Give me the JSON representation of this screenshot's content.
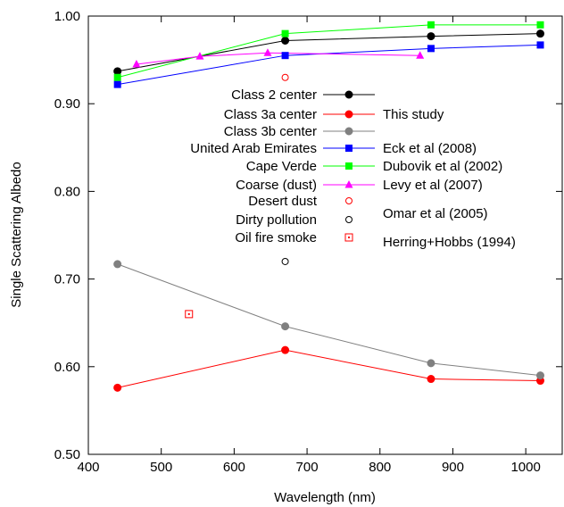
{
  "chart_data": {
    "type": "line",
    "title": "",
    "xlabel": "Wavelength (nm)",
    "ylabel": "Single Scattering Albedo",
    "xlim": [
      400,
      1050
    ],
    "ylim": [
      0.5,
      1.0
    ],
    "xticks": [
      400,
      500,
      600,
      700,
      800,
      900,
      1000
    ],
    "xtick_labels": [
      "400",
      "500",
      "600",
      "700",
      "800",
      "900",
      "1000"
    ],
    "yticks": [
      0.5,
      0.6,
      0.7,
      0.8,
      0.9,
      1.0
    ],
    "ytick_labels": [
      "0.50",
      "0.60",
      "0.70",
      "0.80",
      "0.90",
      "1.00"
    ],
    "grid": false,
    "legend_position": "inside-upper-center",
    "series": [
      {
        "name": "Class 2 center",
        "source": "",
        "color": "#000000",
        "marker": "filled-circle",
        "line": true,
        "x": [
          440,
          670,
          870,
          1020
        ],
        "y": [
          0.937,
          0.972,
          0.977,
          0.98
        ]
      },
      {
        "name": "Class 3a center",
        "source": "This study",
        "color": "#ff0000",
        "marker": "filled-circle",
        "line": true,
        "x": [
          440,
          670,
          870,
          1020
        ],
        "y": [
          0.576,
          0.619,
          0.586,
          0.584
        ]
      },
      {
        "name": "Class 3b center",
        "source": "",
        "color": "#808080",
        "marker": "filled-circle",
        "line": true,
        "x": [
          440,
          670,
          870,
          1020
        ],
        "y": [
          0.717,
          0.646,
          0.604,
          0.59
        ]
      },
      {
        "name": "United Arab Emirates",
        "source": "Eck et al (2008)",
        "color": "#0000ff",
        "marker": "filled-square",
        "line": true,
        "x": [
          440,
          670,
          870,
          1020
        ],
        "y": [
          0.922,
          0.955,
          0.963,
          0.967
        ]
      },
      {
        "name": "Cape Verde",
        "source": "Dubovik et al (2002)",
        "color": "#00ff00",
        "marker": "filled-square",
        "line": true,
        "x": [
          440,
          670,
          870,
          1020
        ],
        "y": [
          0.93,
          0.98,
          0.99,
          0.99
        ]
      },
      {
        "name": "Coarse (dust)",
        "source": "Levy et al (2007)",
        "color": "#ff00ff",
        "marker": "filled-triangle",
        "line": true,
        "x": [
          466,
          553,
          646,
          855
        ],
        "y": [
          0.945,
          0.954,
          0.958,
          0.955
        ]
      },
      {
        "name": "Desert dust",
        "source": "",
        "color": "#ff0000",
        "marker": "open-circle",
        "line": false,
        "x": [
          670
        ],
        "y": [
          0.93
        ]
      },
      {
        "name": "Dirty pollution",
        "source": "Omar et al (2005)",
        "color": "#000000",
        "marker": "open-circle",
        "line": false,
        "x": [
          670
        ],
        "y": [
          0.72
        ]
      },
      {
        "name": "Oil fire smoke",
        "source": "Herring+Hobbs (1994)",
        "color": "#ff0000",
        "marker": "open-square",
        "line": false,
        "x": [
          538
        ],
        "y": [
          0.66
        ]
      }
    ]
  }
}
